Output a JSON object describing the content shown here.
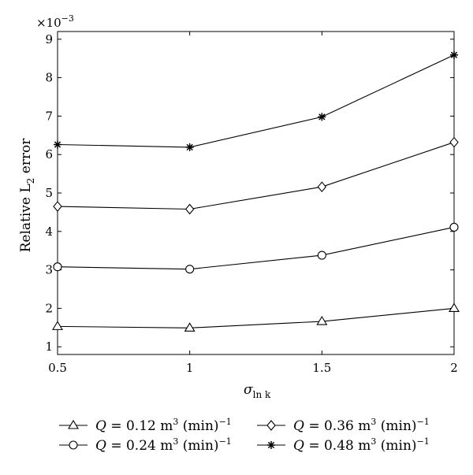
{
  "chart_data": {
    "type": "line",
    "x": [
      0.5,
      1,
      1.5,
      2
    ],
    "xlabel": "σ",
    "xlabel_sub": "ln k",
    "ylabel": "Relative L",
    "ylabel_sub": "2",
    "ylabel_suffix": " error",
    "y_multiplier": "×10",
    "y_multiplier_exp": "−3",
    "xlim": [
      0.5,
      2
    ],
    "ylim": [
      0.8,
      9.2
    ],
    "xticks": [
      "0.5",
      "1",
      "1.5",
      "2"
    ],
    "yticks": [
      "1",
      "2",
      "3",
      "4",
      "5",
      "6",
      "7",
      "8",
      "9"
    ],
    "grid": false,
    "legend_position": "bottom",
    "series": [
      {
        "name": "Q = 0.12 m³ (min)⁻¹",
        "marker": "triangle",
        "values": [
          1.53,
          1.49,
          1.66,
          2.0
        ],
        "legend": {
          "pre": "Q",
          "mid": " = 0.12 m",
          "sup": "3",
          "post": " (min)",
          "sup2": "−1"
        }
      },
      {
        "name": "Q = 0.24 m³ (min)⁻¹",
        "marker": "circle",
        "values": [
          3.08,
          3.02,
          3.38,
          4.11
        ],
        "legend": {
          "pre": "Q",
          "mid": " = 0.24 m",
          "sup": "3",
          "post": " (min)",
          "sup2": "−1"
        }
      },
      {
        "name": "Q = 0.36 m³ (min)⁻¹",
        "marker": "diamond",
        "values": [
          4.65,
          4.58,
          5.16,
          6.32
        ],
        "legend": {
          "pre": "Q",
          "mid": " = 0.36 m",
          "sup": "3",
          "post": " (min)",
          "sup2": "−1"
        }
      },
      {
        "name": "Q = 0.48 m³ (min)⁻¹",
        "marker": "star",
        "values": [
          6.26,
          6.19,
          6.98,
          8.59
        ],
        "legend": {
          "pre": "Q",
          "mid": " = 0.48 m",
          "sup": "3",
          "post": " (min)",
          "sup2": "−1"
        }
      }
    ]
  }
}
